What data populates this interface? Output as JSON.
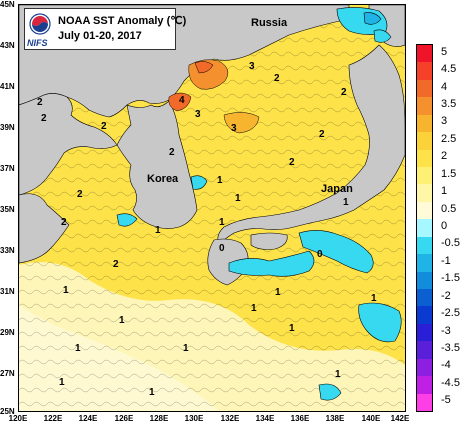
{
  "title": {
    "line1": "NOAA SST Anomaly (℃)",
    "line2": "July 01-20, 2017",
    "agency": "NIFS"
  },
  "places": {
    "russia": "Russia",
    "korea": "Korea",
    "japan": "Japan"
  },
  "axes": {
    "lat_ticks": [
      "45N",
      "43N",
      "41N",
      "39N",
      "37N",
      "35N",
      "33N",
      "31N",
      "29N",
      "27N",
      "25N"
    ],
    "lon_ticks": [
      "120E",
      "122E",
      "124E",
      "126E",
      "128E",
      "130E",
      "132E",
      "134E",
      "136E",
      "138E",
      "140E",
      "142E"
    ]
  },
  "colorbar": {
    "labels": [
      "5",
      "4.5",
      "4",
      "3.5",
      "3",
      "2.5",
      "2",
      "1.5",
      "1",
      "0.5",
      "0",
      "-0.5",
      "-1",
      "-1.5",
      "-2",
      "-2.5",
      "-3",
      "-3.5",
      "-4",
      "-4.5",
      "-5"
    ],
    "colors": [
      "#f0142a",
      "#f5402a",
      "#f26a2a",
      "#f5902e",
      "#f7b42f",
      "#fcd23a",
      "#fde24a",
      "#fef075",
      "#fff7a8",
      "#fffbd8",
      "#a6f7ff",
      "#36d9ef",
      "#1fb3e6",
      "#128ddb",
      "#0b5fd1",
      "#0a3ad0",
      "#2a1fd6",
      "#5a1fd9",
      "#8c1fe0",
      "#c01fe6",
      "#ff3fe6"
    ]
  },
  "contour_labels": [
    "3",
    "2",
    "4",
    "3",
    "2",
    "3",
    "2",
    "2",
    "2",
    "1",
    "1",
    "1",
    "2",
    "1",
    "1",
    "1",
    "1",
    "1",
    "0",
    "2",
    "0",
    "2",
    "2",
    "1",
    "1",
    "1",
    "1",
    "2",
    "1",
    "2",
    "1",
    "1",
    "1"
  ],
  "colors": {
    "land": "#c8c8c8",
    "warm_anomaly": "#fde24a",
    "cold_anomaly": "#36d9ef"
  }
}
